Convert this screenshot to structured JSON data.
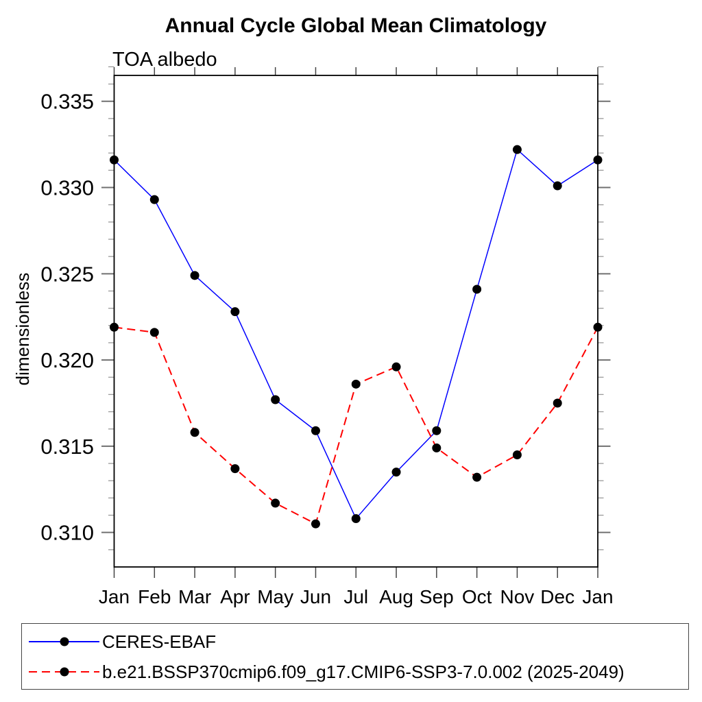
{
  "page": {
    "title": "Annual Cycle Global Mean Climatology",
    "subtitle": "TOA albedo"
  },
  "chart_data": {
    "type": "line",
    "title": "Annual Cycle Global Mean Climatology",
    "subtitle": "TOA albedo",
    "xlabel": "",
    "ylabel": "dimensionless",
    "categories": [
      "Jan",
      "Feb",
      "Mar",
      "Apr",
      "May",
      "Jun",
      "Jul",
      "Aug",
      "Sep",
      "Oct",
      "Nov",
      "Dec",
      "Jan"
    ],
    "ylim": [
      0.308,
      0.3365
    ],
    "yticks_major": [
      0.31,
      0.315,
      0.32,
      0.325,
      0.33,
      0.335
    ],
    "ytick_labels": [
      "0.310",
      "0.315",
      "0.320",
      "0.325",
      "0.330",
      "0.335"
    ],
    "ytick_minor_step": 0.001,
    "grid": false,
    "legend_position": "bottom-outside",
    "series": [
      {
        "name": "CERES-EBAF",
        "color": "#0000ff",
        "line_style": "solid",
        "marker": "filled-circle",
        "marker_color": "#000000",
        "values": [
          0.3316,
          0.3293,
          0.3249,
          0.3228,
          0.3177,
          0.3159,
          0.3108,
          0.3135,
          0.3159,
          0.3241,
          0.3322,
          0.3301,
          0.3316
        ]
      },
      {
        "name": "b.e21.BSSP370cmip6.f09_g17.CMIP6-SSP3-7.0.002 (2025-2049)",
        "color": "#ff0000",
        "line_style": "dashed",
        "marker": "filled-circle",
        "marker_color": "#000000",
        "values": [
          0.3219,
          0.3216,
          0.3158,
          0.3137,
          0.3117,
          0.3105,
          0.3186,
          0.3196,
          0.3149,
          0.3132,
          0.3145,
          0.3175,
          0.3219
        ]
      }
    ]
  },
  "colors": {
    "axis": "#000000",
    "tick_major": "#707070",
    "tick_minor": "#9a9a9a",
    "xtick": "#444444",
    "marker": "#000000",
    "series_blue": "#0000ff",
    "series_red": "#ff0000"
  }
}
